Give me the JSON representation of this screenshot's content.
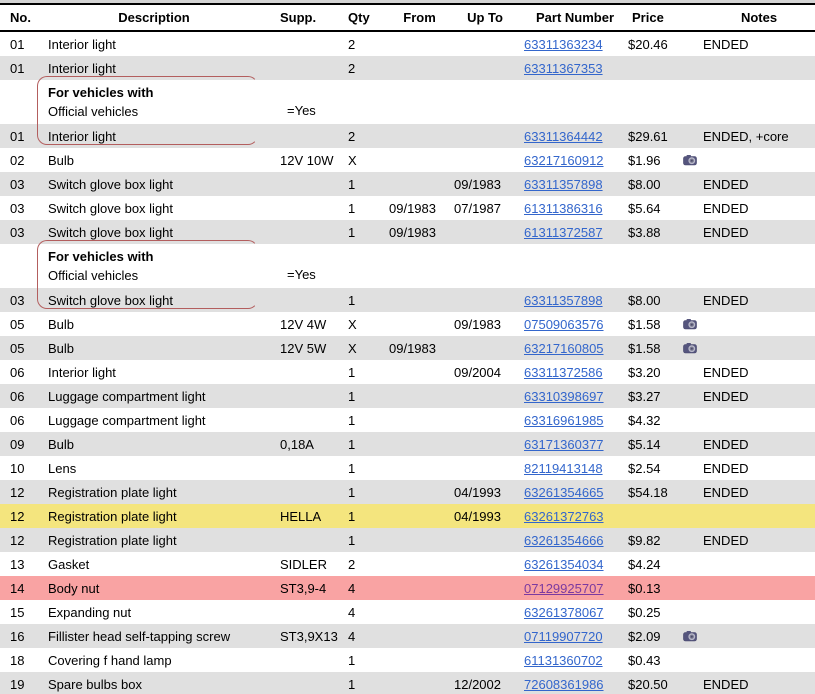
{
  "app": {
    "title": "Parts list"
  },
  "colors": {
    "row_alt": "#e0e0e0",
    "highlight_yellow": "#f4e57e",
    "highlight_pink": "#f9a3a3",
    "link": "#3366cc",
    "link_visited": "#7b3aa0",
    "bracket": "#b35e5e",
    "header_border": "#000000"
  },
  "icons": {
    "photo_available": "camera-icon"
  },
  "table": {
    "columns": [
      {
        "key": "no",
        "label": "No."
      },
      {
        "key": "desc",
        "label": "Description"
      },
      {
        "key": "supp",
        "label": "Supp."
      },
      {
        "key": "qty",
        "label": "Qty"
      },
      {
        "key": "from",
        "label": "From"
      },
      {
        "key": "upto",
        "label": "Up To"
      },
      {
        "key": "part",
        "label": "Part Number"
      },
      {
        "key": "price",
        "label": "Price"
      },
      {
        "key": "notes",
        "label": "Notes"
      }
    ],
    "rows": [
      {
        "type": "part",
        "no": "01",
        "desc": "Interior light",
        "supp": "",
        "qty": "2",
        "from": "",
        "upto": "",
        "part": "63311363234",
        "price": "$20.46",
        "camera": false,
        "notes": "ENDED",
        "bg": "white",
        "visited": false
      },
      {
        "type": "part",
        "no": "01",
        "desc": "Interior light",
        "supp": "",
        "qty": "2",
        "from": "",
        "upto": "",
        "part": "63311367353",
        "price": "",
        "camera": false,
        "notes": "",
        "bg": "gray",
        "visited": false
      },
      {
        "type": "group",
        "title": "For vehicles with",
        "condition": "Official vehicles",
        "value": "=Yes",
        "bg": "white"
      },
      {
        "type": "part",
        "no": "01",
        "desc": "Interior light",
        "supp": "",
        "qty": "2",
        "from": "",
        "upto": "",
        "part": "63311364442",
        "price": "$29.61",
        "camera": false,
        "notes": "ENDED, +core",
        "bg": "gray",
        "visited": false
      },
      {
        "type": "part",
        "no": "02",
        "desc": "Bulb",
        "supp": "12V 10W",
        "qty": "X",
        "from": "",
        "upto": "",
        "part": "63217160912",
        "price": "$1.96",
        "camera": true,
        "notes": "",
        "bg": "white",
        "visited": false
      },
      {
        "type": "part",
        "no": "03",
        "desc": "Switch glove box light",
        "supp": "",
        "qty": "1",
        "from": "",
        "upto": "09/1983",
        "part": "63311357898",
        "price": "$8.00",
        "camera": false,
        "notes": "ENDED",
        "bg": "gray",
        "visited": false
      },
      {
        "type": "part",
        "no": "03",
        "desc": "Switch glove box light",
        "supp": "",
        "qty": "1",
        "from": "09/1983",
        "upto": "07/1987",
        "part": "61311386316",
        "price": "$5.64",
        "camera": false,
        "notes": "ENDED",
        "bg": "white",
        "visited": false
      },
      {
        "type": "part",
        "no": "03",
        "desc": "Switch glove box light",
        "supp": "",
        "qty": "1",
        "from": "09/1983",
        "upto": "",
        "part": "61311372587",
        "price": "$3.88",
        "camera": false,
        "notes": "ENDED",
        "bg": "gray",
        "visited": false
      },
      {
        "type": "group",
        "title": "For vehicles with",
        "condition": "Official vehicles",
        "value": "=Yes",
        "bg": "white"
      },
      {
        "type": "part",
        "no": "03",
        "desc": "Switch glove box light",
        "supp": "",
        "qty": "1",
        "from": "",
        "upto": "",
        "part": "63311357898",
        "price": "$8.00",
        "camera": false,
        "notes": "ENDED",
        "bg": "gray",
        "visited": false
      },
      {
        "type": "part",
        "no": "05",
        "desc": "Bulb",
        "supp": "12V 4W",
        "qty": "X",
        "from": "",
        "upto": "09/1983",
        "part": "07509063576",
        "price": "$1.58",
        "camera": true,
        "notes": "",
        "bg": "white",
        "visited": false
      },
      {
        "type": "part",
        "no": "05",
        "desc": "Bulb",
        "supp": "12V 5W",
        "qty": "X",
        "from": "09/1983",
        "upto": "",
        "part": "63217160805",
        "price": "$1.58",
        "camera": true,
        "notes": "",
        "bg": "gray",
        "visited": false
      },
      {
        "type": "part",
        "no": "06",
        "desc": "Interior light",
        "supp": "",
        "qty": "1",
        "from": "",
        "upto": "09/2004",
        "part": "63311372586",
        "price": "$3.20",
        "camera": false,
        "notes": "ENDED",
        "bg": "white",
        "visited": false
      },
      {
        "type": "part",
        "no": "06",
        "desc": "Luggage compartment light",
        "supp": "",
        "qty": "1",
        "from": "",
        "upto": "",
        "part": "63310398697",
        "price": "$3.27",
        "camera": false,
        "notes": "ENDED",
        "bg": "gray",
        "visited": false
      },
      {
        "type": "part",
        "no": "06",
        "desc": "Luggage compartment light",
        "supp": "",
        "qty": "1",
        "from": "",
        "upto": "",
        "part": "63316961985",
        "price": "$4.32",
        "camera": false,
        "notes": "",
        "bg": "white",
        "visited": false
      },
      {
        "type": "part",
        "no": "09",
        "desc": "Bulb",
        "supp": "0,18A",
        "qty": "1",
        "from": "",
        "upto": "",
        "part": "63171360377",
        "price": "$5.14",
        "camera": false,
        "notes": "ENDED",
        "bg": "gray",
        "visited": false
      },
      {
        "type": "part",
        "no": "10",
        "desc": "Lens",
        "supp": "",
        "qty": "1",
        "from": "",
        "upto": "",
        "part": "82119413148",
        "price": "$2.54",
        "camera": false,
        "notes": "ENDED",
        "bg": "white",
        "visited": false
      },
      {
        "type": "part",
        "no": "12",
        "desc": "Registration plate light",
        "supp": "",
        "qty": "1",
        "from": "",
        "upto": "04/1993",
        "part": "63261354665",
        "price": "$54.18",
        "camera": false,
        "notes": "ENDED",
        "bg": "gray",
        "visited": false
      },
      {
        "type": "part",
        "no": "12",
        "desc": "Registration plate light",
        "supp": "HELLA",
        "qty": "1",
        "from": "",
        "upto": "04/1993",
        "part": "63261372763",
        "price": "",
        "camera": false,
        "notes": "",
        "bg": "yellow",
        "visited": false
      },
      {
        "type": "part",
        "no": "12",
        "desc": "Registration plate light",
        "supp": "",
        "qty": "1",
        "from": "",
        "upto": "",
        "part": "63261354666",
        "price": "$9.82",
        "camera": false,
        "notes": "ENDED",
        "bg": "gray",
        "visited": false
      },
      {
        "type": "part",
        "no": "13",
        "desc": "Gasket",
        "supp": "SIDLER",
        "qty": "2",
        "from": "",
        "upto": "",
        "part": "63261354034",
        "price": "$4.24",
        "camera": false,
        "notes": "",
        "bg": "white",
        "visited": false
      },
      {
        "type": "part",
        "no": "14",
        "desc": "Body nut",
        "supp": "ST3,9-4",
        "qty": "4",
        "from": "",
        "upto": "",
        "part": "07129925707",
        "price": "$0.13",
        "camera": false,
        "notes": "",
        "bg": "pink",
        "visited": true
      },
      {
        "type": "part",
        "no": "15",
        "desc": "Expanding nut",
        "supp": "",
        "qty": "4",
        "from": "",
        "upto": "",
        "part": "63261378067",
        "price": "$0.25",
        "camera": false,
        "notes": "",
        "bg": "white",
        "visited": false
      },
      {
        "type": "part",
        "no": "16",
        "desc": "Fillister head self-tapping screw",
        "supp": "ST3,9X13",
        "qty": "4",
        "from": "",
        "upto": "",
        "part": "07119907720",
        "price": "$2.09",
        "camera": true,
        "notes": "",
        "bg": "gray",
        "visited": false
      },
      {
        "type": "part",
        "no": "18",
        "desc": "Covering f hand lamp",
        "supp": "",
        "qty": "1",
        "from": "",
        "upto": "",
        "part": "61131360702",
        "price": "$0.43",
        "camera": false,
        "notes": "",
        "bg": "white",
        "visited": false
      },
      {
        "type": "part",
        "no": "19",
        "desc": "Spare bulbs box",
        "supp": "",
        "qty": "1",
        "from": "",
        "upto": "12/2002",
        "part": "72608361986",
        "price": "$20.50",
        "camera": false,
        "notes": "ENDED",
        "bg": "gray",
        "visited": false
      }
    ]
  }
}
